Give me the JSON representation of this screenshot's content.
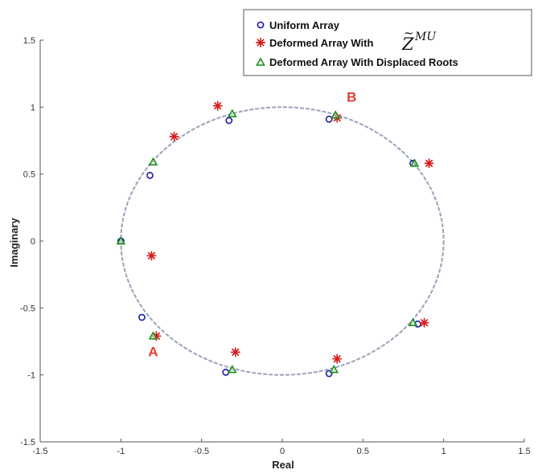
{
  "chart_data": {
    "type": "scatter",
    "title": "",
    "xlabel": "Real",
    "ylabel": "Imaginary",
    "xlim": [
      -1.5,
      1.5
    ],
    "ylim": [
      -1.5,
      1.5
    ],
    "xticks": [
      "-1.5",
      "-1",
      "-0.5",
      "0",
      "0.5",
      "1",
      "1.5"
    ],
    "yticks": [
      "1.5",
      "1",
      "0.5",
      "0",
      "-0.5",
      "-1",
      "-1.5"
    ],
    "grid": false,
    "legend_position": "top-right",
    "colors": {
      "uniform": "#1a1aa8",
      "deformed": "#d81c1c",
      "displaced": "#1c8c1c",
      "circle": "#9aa2b8",
      "annotation": "#e83a2a"
    },
    "unit_circle": true,
    "legend": {
      "uniform": "Uniform Array",
      "deformed_prefix": "Deformed Array With",
      "deformed_symbol": "Z",
      "deformed_superscript": "MU",
      "displaced": "Deformed Array With Displaced Roots"
    },
    "annotations": [
      {
        "text": "A",
        "x": -0.8,
        "y": -0.86
      },
      {
        "text": "B",
        "x": 0.43,
        "y": 1.04
      }
    ],
    "series": [
      {
        "name": "Uniform Array",
        "marker": "circle",
        "points": [
          [
            0.29,
            0.91
          ],
          [
            0.81,
            0.58
          ],
          [
            -0.33,
            0.9
          ],
          [
            -0.82,
            0.49
          ],
          [
            -1.0,
            0.0
          ],
          [
            -0.87,
            -0.57
          ],
          [
            -0.35,
            -0.98
          ],
          [
            0.29,
            -0.99
          ],
          [
            0.84,
            -0.62
          ]
        ]
      },
      {
        "name": "Deformed Array With Z MU",
        "marker": "star",
        "points": [
          [
            -0.4,
            1.01
          ],
          [
            0.34,
            0.92
          ],
          [
            -0.67,
            0.78
          ],
          [
            0.91,
            0.58
          ],
          [
            -0.81,
            -0.11
          ],
          [
            -0.78,
            -0.71
          ],
          [
            -0.29,
            -0.83
          ],
          [
            0.34,
            -0.88
          ],
          [
            0.88,
            -0.61
          ]
        ]
      },
      {
        "name": "Deformed Array With Displaced Roots",
        "marker": "triangle",
        "points": [
          [
            -0.31,
            0.95
          ],
          [
            0.33,
            0.94
          ],
          [
            -0.8,
            0.59
          ],
          [
            0.82,
            0.58
          ],
          [
            -1.0,
            0.0
          ],
          [
            -0.8,
            -0.71
          ],
          [
            -0.31,
            -0.96
          ],
          [
            0.32,
            -0.96
          ],
          [
            0.81,
            -0.61
          ]
        ]
      }
    ]
  }
}
